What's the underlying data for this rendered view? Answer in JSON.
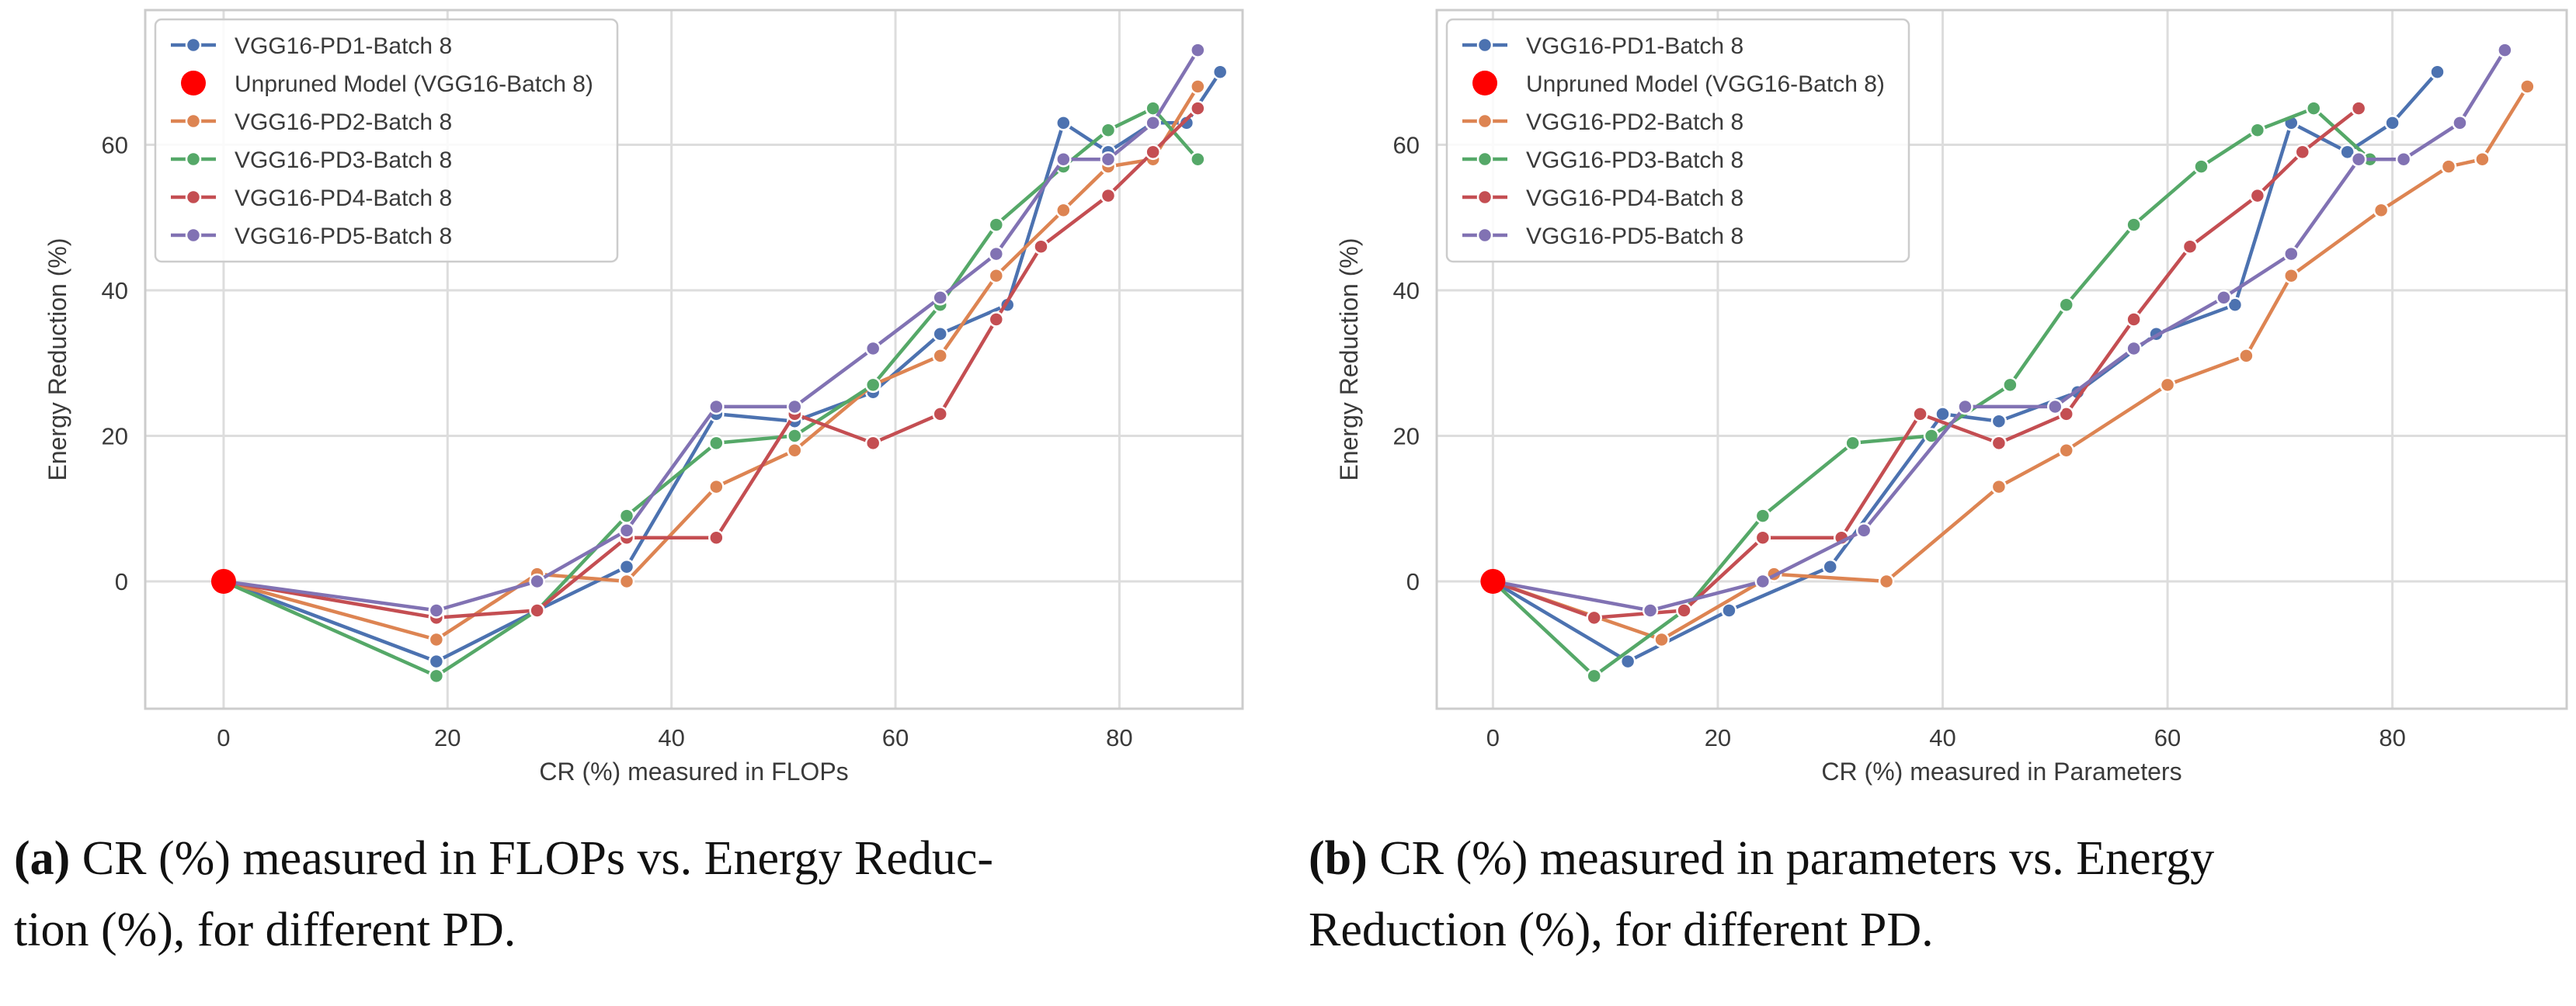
{
  "chart_data": [
    {
      "type": "line",
      "xlabel": "CR (%) measured in FLOPs",
      "ylabel": "Energy Reduction (%)",
      "xlim": [
        -7,
        91
      ],
      "ylim": [
        -17.5,
        78.5
      ],
      "xticks": [
        0,
        20,
        40,
        60,
        80
      ],
      "yticks": [
        0,
        20,
        40,
        60
      ],
      "grid": true,
      "legend_position": "top-left",
      "unpruned": {
        "name": "Unpruned Model (VGG16-Batch 8)",
        "x": 0,
        "y": 0,
        "color": "#ff0000"
      },
      "series": [
        {
          "name": "VGG16-PD1-Batch 8",
          "color": "#4c72b0",
          "x": [
            0,
            19,
            28,
            36,
            44,
            51,
            58,
            64,
            70,
            75,
            79,
            83,
            86,
            89
          ],
          "y": [
            0,
            -11,
            -4,
            2,
            23,
            22,
            26,
            34,
            38,
            63,
            59,
            63,
            63,
            70
          ]
        },
        {
          "name": "VGG16-PD2-Batch 8",
          "color": "#dd8452",
          "x": [
            0,
            19,
            28,
            36,
            44,
            51,
            58,
            64,
            69,
            75,
            79,
            83,
            87
          ],
          "y": [
            0,
            -8,
            1,
            0,
            13,
            18,
            27,
            31,
            42,
            51,
            57,
            58,
            68
          ]
        },
        {
          "name": "VGG16-PD3-Batch 8",
          "color": "#55a868",
          "x": [
            0,
            19,
            28,
            36,
            44,
            51,
            58,
            64,
            69,
            75,
            79,
            83,
            87
          ],
          "y": [
            0,
            -13,
            -4,
            9,
            19,
            20,
            27,
            38,
            49,
            57,
            62,
            65,
            58
          ]
        },
        {
          "name": "VGG16-PD4-Batch 8",
          "color": "#c44e52",
          "x": [
            0,
            19,
            28,
            36,
            44,
            51,
            58,
            64,
            69,
            73,
            79,
            83,
            87
          ],
          "y": [
            0,
            -5,
            -4,
            6,
            6,
            23,
            19,
            23,
            36,
            46,
            53,
            59,
            65
          ]
        },
        {
          "name": "VGG16-PD5-Batch 8",
          "color": "#8172b3",
          "x": [
            0,
            19,
            28,
            36,
            44,
            51,
            58,
            64,
            69,
            75,
            79,
            83,
            87
          ],
          "y": [
            0,
            -4,
            0,
            7,
            24,
            24,
            32,
            39,
            45,
            58,
            58,
            63,
            73
          ]
        }
      ]
    },
    {
      "type": "line",
      "xlabel": "CR (%) measured in Parameters",
      "ylabel": "Energy Reduction (%)",
      "xlim": [
        -5,
        95.5
      ],
      "ylim": [
        -17.5,
        78.5
      ],
      "xticks": [
        0,
        20,
        40,
        60,
        80
      ],
      "yticks": [
        0,
        20,
        40,
        60
      ],
      "grid": true,
      "legend_position": "top-left",
      "unpruned": {
        "name": "Unpruned Model (VGG16-Batch 8)",
        "x": 0,
        "y": 0,
        "color": "#ff0000"
      },
      "series": [
        {
          "name": "VGG16-PD1-Batch 8",
          "color": "#4c72b0",
          "x": [
            0,
            12,
            21,
            30,
            40,
            45,
            52,
            59,
            66,
            71,
            76,
            80,
            84
          ],
          "y": [
            0,
            -11,
            -4,
            2,
            23,
            22,
            26,
            34,
            38,
            63,
            59,
            63,
            70
          ]
        },
        {
          "name": "VGG16-PD2-Batch 8",
          "color": "#dd8452",
          "x": [
            0,
            15,
            25,
            35,
            45,
            51,
            60,
            67,
            71,
            79,
            85,
            88,
            92
          ],
          "y": [
            0,
            -8,
            1,
            0,
            13,
            18,
            27,
            31,
            42,
            51,
            57,
            58,
            68
          ]
        },
        {
          "name": "VGG16-PD3-Batch 8",
          "color": "#55a868",
          "x": [
            0,
            9,
            17,
            24,
            32,
            39,
            46,
            51,
            57,
            63,
            68,
            73,
            78
          ],
          "y": [
            0,
            -13,
            -4,
            9,
            19,
            20,
            27,
            38,
            49,
            57,
            62,
            65,
            58
          ]
        },
        {
          "name": "VGG16-PD4-Batch 8",
          "color": "#c44e52",
          "x": [
            0,
            9,
            17,
            24,
            31,
            38,
            45,
            51,
            57,
            62,
            68,
            72,
            77
          ],
          "y": [
            0,
            -5,
            -4,
            6,
            6,
            23,
            19,
            23,
            36,
            46,
            53,
            59,
            65
          ]
        },
        {
          "name": "VGG16-PD5-Batch 8",
          "color": "#8172b3",
          "x": [
            0,
            14,
            24,
            33,
            42,
            50,
            57,
            65,
            71,
            77,
            81,
            86,
            90
          ],
          "y": [
            0,
            -4,
            0,
            7,
            24,
            24,
            32,
            39,
            45,
            58,
            58,
            63,
            73
          ]
        }
      ]
    }
  ],
  "captions": [
    {
      "label": "(a)",
      "text_line1": " CR (%) measured in FLOPs vs. Energy Reduc-",
      "text_line2": "tion (%), for different PD."
    },
    {
      "label": "(b)",
      "text_line1": " CR (%) measured in parameters vs.  Energy",
      "text_line2": "Reduction (%), for different PD."
    }
  ]
}
